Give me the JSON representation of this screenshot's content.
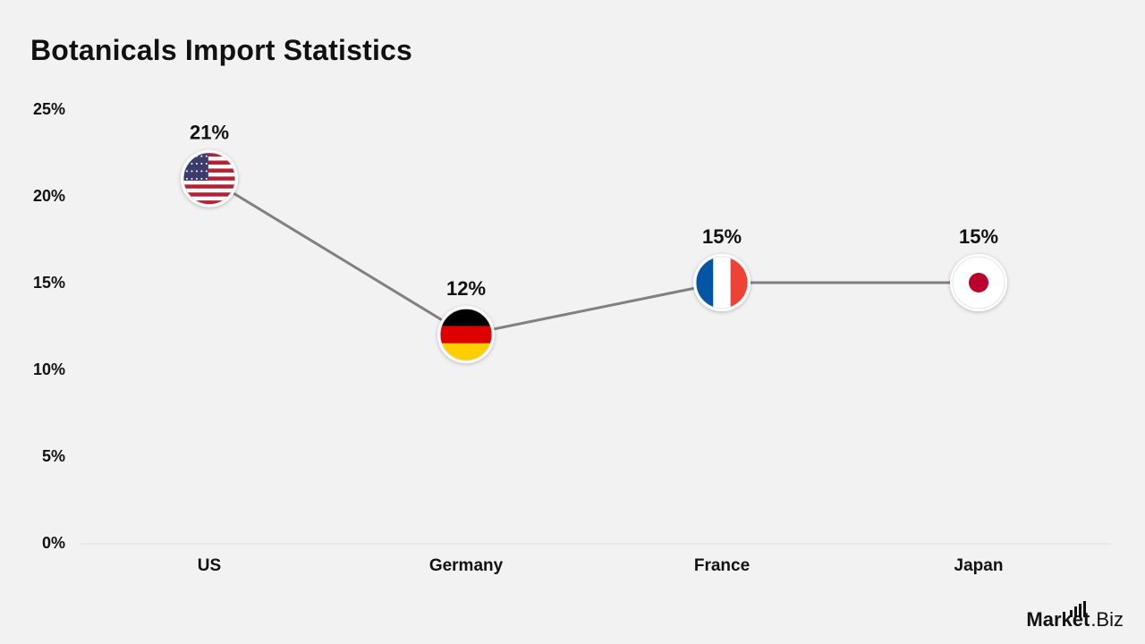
{
  "brand": {
    "name_main": "Market",
    "name_suffix": ".Biz",
    "icon": "bar-chart-icon"
  },
  "chart_data": {
    "type": "line",
    "title": "Botanicals Import Statistics",
    "categories": [
      "US",
      "Germany",
      "France",
      "Japan"
    ],
    "values": [
      21,
      12,
      15,
      15
    ],
    "data_labels": [
      "21%",
      "12%",
      "15%",
      "15%"
    ],
    "markers": [
      "us-flag-icon",
      "germany-flag-icon",
      "france-flag-icon",
      "japan-flag-icon"
    ],
    "ylim": [
      0,
      25
    ],
    "yticks": [
      0,
      5,
      10,
      15,
      20,
      25
    ],
    "ytick_labels": [
      "0%",
      "5%",
      "10%",
      "15%",
      "20%",
      "25%"
    ],
    "xlabel": "",
    "ylabel": "",
    "grid": false,
    "line_color": "#808080"
  }
}
